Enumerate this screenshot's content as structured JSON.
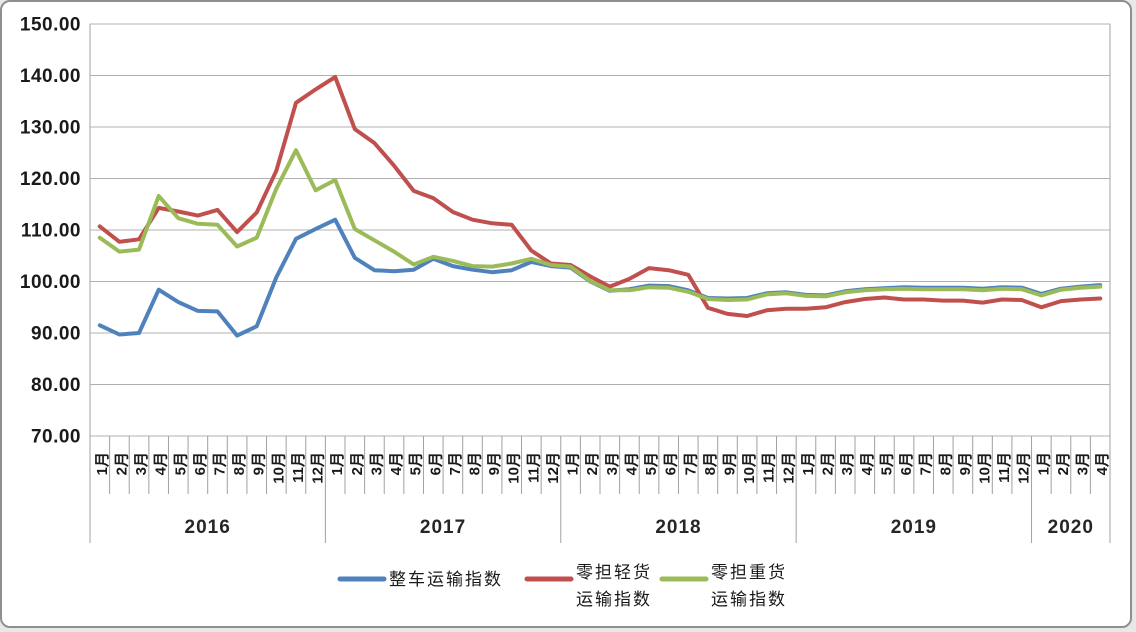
{
  "frame": {
    "background": "#ffffff",
    "border_color": "#8f8f8f",
    "gridline_color": "#b0b0b0",
    "separator_color": "#a0a0a0",
    "text_color": "#1a1a1a"
  },
  "chart_data": {
    "type": "line",
    "title": "",
    "grid": true,
    "legend_position": "bottom",
    "y_axis": {
      "min": 70,
      "max": 150,
      "step": 10,
      "tick_labels": [
        "150.00",
        "140.00",
        "130.00",
        "120.00",
        "110.00",
        "100.00",
        "90.00",
        "80.00",
        "70.00"
      ]
    },
    "x_axis": {
      "month_labels": [
        "1月",
        "2月",
        "3月",
        "4月",
        "5月",
        "6月",
        "7月",
        "8月",
        "9月",
        "10月",
        "11月",
        "12月"
      ],
      "years": [
        {
          "label": "2016",
          "months": 12
        },
        {
          "label": "2017",
          "months": 12
        },
        {
          "label": "2018",
          "months": 12
        },
        {
          "label": "2019",
          "months": 12
        },
        {
          "label": "2020",
          "months": 4
        }
      ]
    },
    "series": [
      {
        "id": "ftl-index",
        "name": "整车运输指数",
        "name_lines": [
          "整车运输指数"
        ],
        "color": "#4F81BD",
        "values": [
          91.5,
          89.7,
          90.0,
          98.4,
          96.0,
          94.3,
          94.2,
          89.5,
          91.3,
          100.8,
          108.3,
          110.2,
          112.0,
          104.6,
          102.2,
          102.0,
          102.3,
          104.4,
          103.0,
          102.3,
          101.8,
          102.2,
          103.8,
          103.0,
          102.7,
          100.0,
          98.2,
          98.5,
          99.2,
          99.1,
          98.3,
          96.8,
          96.7,
          96.8,
          97.7,
          97.9,
          97.4,
          97.3,
          98.1,
          98.5,
          98.7,
          98.9,
          98.8,
          98.8,
          98.8,
          98.6,
          98.9,
          98.8,
          97.6,
          98.6,
          99.0,
          99.3
        ]
      },
      {
        "id": "ltl-light-index",
        "name": "零担轻货运输指数",
        "name_lines": [
          "零担轻货",
          "运输指数"
        ],
        "color": "#C0504D",
        "values": [
          110.7,
          107.7,
          108.2,
          114.3,
          113.6,
          112.8,
          113.9,
          109.6,
          113.4,
          121.5,
          134.7,
          137.3,
          139.7,
          129.6,
          126.9,
          122.5,
          117.6,
          116.2,
          113.5,
          112.0,
          111.3,
          111.0,
          106.0,
          103.5,
          103.2,
          101.0,
          99.0,
          100.5,
          102.6,
          102.2,
          101.3,
          94.9,
          93.7,
          93.3,
          94.4,
          94.7,
          94.7,
          95.0,
          96.0,
          96.6,
          96.9,
          96.5,
          96.5,
          96.3,
          96.3,
          95.9,
          96.5,
          96.4,
          95.0,
          96.2,
          96.5,
          96.7
        ]
      },
      {
        "id": "ltl-heavy-index",
        "name": "零担重货运输指数",
        "name_lines": [
          "零担重货",
          "运输指数"
        ],
        "color": "#9BBB59",
        "values": [
          108.5,
          105.8,
          106.2,
          116.6,
          112.3,
          111.2,
          111.0,
          106.8,
          108.5,
          118.0,
          125.5,
          117.7,
          119.7,
          110.2,
          108.0,
          105.8,
          103.3,
          104.8,
          104.0,
          103.0,
          102.9,
          103.5,
          104.4,
          103.2,
          102.9,
          100.1,
          98.3,
          98.3,
          98.9,
          98.8,
          98.0,
          96.6,
          96.4,
          96.5,
          97.5,
          97.7,
          97.2,
          97.1,
          97.9,
          98.3,
          98.5,
          98.6,
          98.5,
          98.5,
          98.5,
          98.3,
          98.6,
          98.5,
          97.3,
          98.4,
          98.8,
          99.0
        ]
      }
    ]
  }
}
